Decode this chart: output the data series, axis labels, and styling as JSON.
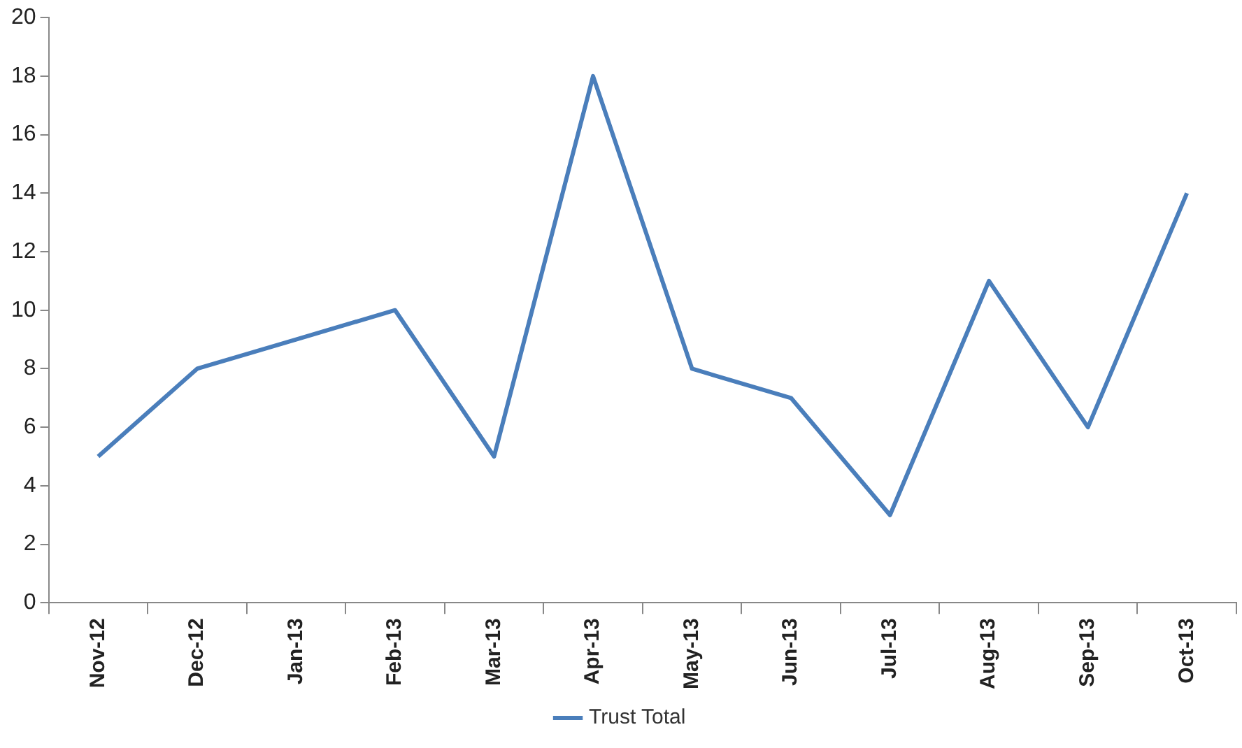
{
  "chart_data": {
    "type": "line",
    "categories": [
      "Nov-12",
      "Dec-12",
      "Jan-13",
      "Feb-13",
      "Mar-13",
      "Apr-13",
      "May-13",
      "Jun-13",
      "Jul-13",
      "Aug-13",
      "Sep-13",
      "Oct-13"
    ],
    "series": [
      {
        "name": "Trust Total",
        "color": "#4a7ebb",
        "values": [
          5,
          8,
          9,
          10,
          5,
          18,
          8,
          7,
          3,
          11,
          6,
          14
        ]
      }
    ],
    "ylim": [
      0,
      20
    ],
    "yticks": [
      0,
      2,
      4,
      6,
      8,
      10,
      12,
      14,
      16,
      18,
      20
    ],
    "grid": false,
    "legend": "bottom",
    "marker": "none",
    "line_style": "solid"
  }
}
